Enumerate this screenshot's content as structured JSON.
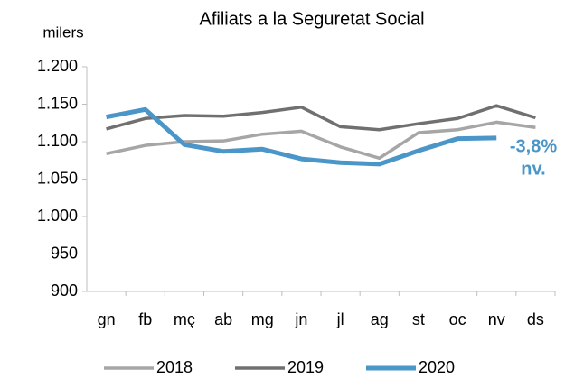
{
  "chart_data": {
    "type": "line",
    "title": "Afiliats a la Seguretat Social",
    "y_label": "milers",
    "categories": [
      "gn",
      "fb",
      "mç",
      "ab",
      "mg",
      "jn",
      "jl",
      "ag",
      "st",
      "oc",
      "nv",
      "ds"
    ],
    "series": [
      {
        "name": "2018",
        "color": "#a6a6a6",
        "values": [
          1084,
          1095,
          1100,
          1101,
          1110,
          1114,
          1093,
          1078,
          1112,
          1116,
          1126,
          1119
        ]
      },
      {
        "name": "2019",
        "color": "#707070",
        "values": [
          1117,
          1131,
          1135,
          1134,
          1139,
          1146,
          1120,
          1116,
          1124,
          1131,
          1148,
          1132
        ]
      },
      {
        "name": "2020",
        "color": "#4a96c8",
        "values": [
          1133,
          1143,
          1096,
          1087,
          1090,
          1077,
          1072,
          1070,
          1088,
          1104,
          1105,
          null
        ]
      }
    ],
    "annotations": [
      "-3,8%",
      "nv."
    ],
    "ylim": [
      900,
      1200
    ],
    "yticks": [
      900,
      950,
      {
        "value": 1000,
        "label": "1.000"
      },
      {
        "value": 1050,
        "label": "1.050"
      },
      {
        "value": 1100,
        "label": "1.100"
      },
      {
        "value": 1150,
        "label": "1.150"
      },
      {
        "value": 1200,
        "label": "1.200"
      }
    ],
    "grid": false,
    "legend": "bottom"
  }
}
